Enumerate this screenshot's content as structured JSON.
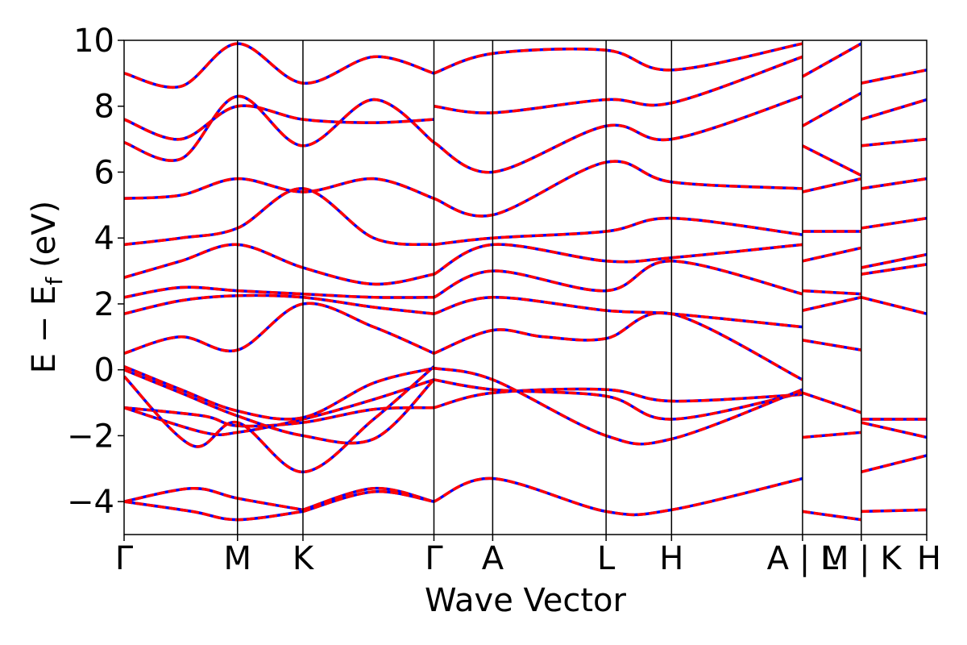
{
  "chart_data": {
    "type": "line",
    "title": "",
    "xlabel": "Wave Vector",
    "ylabel": "E − E",
    "ylabel_subscript": "f",
    "ylabel_unit": "(eV)",
    "ylim": [
      -5,
      10
    ],
    "yticks": [
      10,
      8,
      6,
      4,
      2,
      0,
      -2,
      -4
    ],
    "ytick_labels": [
      "10",
      "8",
      "6",
      "4",
      "2",
      "0",
      "−2",
      "−4"
    ],
    "kpath_x": [
      0,
      1.0,
      1.577,
      2.732,
      3.25,
      4.25,
      4.827,
      5.982,
      6.5,
      7.077
    ],
    "kpoint_labels": [
      "Γ",
      "M",
      "K",
      "Γ",
      "A",
      "L",
      "H",
      "A | L",
      "M | K",
      "H"
    ],
    "xlim": [
      0,
      7.077
    ],
    "grid": false,
    "legend": "none",
    "series_styles": [
      {
        "color": "#0000ff",
        "style": "solid"
      },
      {
        "color": "#ff0000",
        "style": "dashed"
      }
    ],
    "bands": [
      {
        "x": [
          0,
          0.6,
          1.0,
          1.577
        ],
        "y": [
          -4.0,
          -3.6,
          -3.9,
          -4.25
        ]
      },
      {
        "x": [
          0,
          0.6,
          1.0,
          1.577
        ],
        "y": [
          -4.0,
          -4.3,
          -4.55,
          -4.3
        ]
      },
      {
        "x": [
          1.577,
          2.2,
          2.732
        ],
        "y": [
          -4.25,
          -3.6,
          -4.0
        ]
      },
      {
        "x": [
          1.577,
          2.2,
          2.732
        ],
        "y": [
          -4.3,
          -3.7,
          -4.0
        ]
      },
      {
        "x": [
          0,
          0.7,
          1.0,
          1.577,
          2.2,
          2.732
        ],
        "y": [
          -1.15,
          -1.4,
          -1.7,
          -1.6,
          -1.2,
          -1.15
        ]
      },
      {
        "x": [
          0,
          0.7,
          1.0,
          1.577,
          2.2,
          2.732
        ],
        "y": [
          -1.15,
          -1.9,
          -1.9,
          -1.5,
          -0.9,
          -0.3
        ]
      },
      {
        "x": [
          0,
          0.6,
          1.0,
          1.577,
          2.2,
          2.732
        ],
        "y": [
          -0.2,
          -2.3,
          -1.6,
          -3.1,
          -1.5,
          0.1
        ]
      },
      {
        "x": [
          0,
          0.5,
          1.0,
          1.577,
          2.2,
          2.732
        ],
        "y": [
          0.1,
          -0.6,
          -1.25,
          -1.45,
          -0.4,
          0.05
        ]
      },
      {
        "x": [
          0,
          0.5,
          1.0,
          1.577,
          2.2,
          2.732
        ],
        "y": [
          0.0,
          -0.7,
          -1.4,
          -2.0,
          -2.1,
          -0.3
        ]
      },
      {
        "x": [
          0,
          0.5,
          1.0,
          1.577,
          2.2,
          2.732
        ],
        "y": [
          0.5,
          1.0,
          0.6,
          2.0,
          1.3,
          0.5
        ]
      },
      {
        "x": [
          0,
          0.5,
          1.0,
          1.577,
          2.2,
          2.732
        ],
        "y": [
          1.7,
          2.1,
          2.25,
          2.2,
          1.9,
          1.7
        ]
      },
      {
        "x": [
          0,
          0.5,
          1.0,
          1.577,
          2.2,
          2.732
        ],
        "y": [
          2.2,
          2.5,
          2.4,
          2.3,
          2.2,
          2.2
        ]
      },
      {
        "x": [
          0,
          0.5,
          1.0,
          1.577,
          2.2,
          2.732
        ],
        "y": [
          2.8,
          3.3,
          3.8,
          3.1,
          2.6,
          2.9
        ]
      },
      {
        "x": [
          0,
          0.5,
          1.0,
          1.577,
          2.2,
          2.732
        ],
        "y": [
          3.8,
          4.0,
          4.3,
          5.5,
          4.0,
          3.8
        ]
      },
      {
        "x": [
          0,
          0.5,
          1.0,
          1.577,
          2.2,
          2.732
        ],
        "y": [
          5.2,
          5.3,
          5.8,
          5.4,
          5.8,
          5.2
        ]
      },
      {
        "x": [
          0,
          0.5,
          1.0,
          1.577,
          2.2,
          2.732
        ],
        "y": [
          6.9,
          6.4,
          8.3,
          6.8,
          8.2,
          6.9
        ]
      },
      {
        "x": [
          0,
          0.5,
          1.0,
          1.577,
          2.2,
          2.732
        ],
        "y": [
          7.6,
          7.0,
          8.0,
          7.6,
          7.5,
          7.6
        ]
      },
      {
        "x": [
          0,
          0.5,
          1.0,
          1.577,
          2.2,
          2.732
        ],
        "y": [
          9.0,
          8.6,
          9.9,
          8.7,
          9.5,
          9.0
        ]
      },
      {
        "x": [
          2.732,
          3.25,
          4.25,
          4.827,
          5.982
        ],
        "y": [
          -1.15,
          -0.7,
          -0.6,
          -0.95,
          -0.75
        ]
      },
      {
        "x": [
          2.732,
          3.25,
          4.25,
          4.827,
          5.982
        ],
        "y": [
          -0.3,
          -0.6,
          -0.8,
          -1.5,
          -0.7
        ]
      },
      {
        "x": [
          2.732,
          3.25,
          4.25,
          4.827,
          5.982
        ],
        "y": [
          0.05,
          -0.3,
          -2.0,
          -2.1,
          -0.6
        ]
      },
      {
        "x": [
          2.732,
          3.25,
          3.7,
          4.25,
          4.827,
          5.982
        ],
        "y": [
          0.5,
          1.2,
          1.0,
          0.95,
          1.7,
          -0.3
        ]
      },
      {
        "x": [
          2.732,
          3.25,
          4.25,
          4.827,
          5.982
        ],
        "y": [
          1.7,
          2.2,
          1.8,
          1.7,
          1.3
        ]
      },
      {
        "x": [
          2.732,
          3.25,
          4.25,
          4.827,
          5.982
        ],
        "y": [
          2.2,
          3.0,
          2.4,
          3.3,
          2.3
        ]
      },
      {
        "x": [
          2.732,
          3.25,
          4.25,
          4.827,
          5.982
        ],
        "y": [
          2.9,
          3.8,
          3.3,
          3.4,
          3.8
        ]
      },
      {
        "x": [
          2.732,
          3.25,
          4.25,
          4.827,
          5.982
        ],
        "y": [
          3.8,
          4.0,
          4.2,
          4.6,
          4.1
        ]
      },
      {
        "x": [
          2.732,
          3.25,
          4.25,
          4.827,
          5.982
        ],
        "y": [
          5.2,
          4.7,
          6.3,
          5.7,
          5.5
        ]
      },
      {
        "x": [
          2.732,
          3.25,
          4.25,
          4.827,
          5.982
        ],
        "y": [
          6.9,
          6.0,
          7.4,
          7.0,
          8.3
        ]
      },
      {
        "x": [
          2.732,
          3.25,
          4.25,
          4.827,
          5.982
        ],
        "y": [
          8.0,
          7.8,
          8.2,
          8.1,
          9.5
        ]
      },
      {
        "x": [
          2.732,
          3.25,
          4.25,
          4.827,
          5.982
        ],
        "y": [
          9.0,
          9.6,
          9.7,
          9.1,
          9.9
        ]
      },
      {
        "x": [
          2.732,
          3.25,
          4.25,
          4.827,
          5.982
        ],
        "y": [
          -4.0,
          -3.3,
          -4.3,
          -4.25,
          -3.3
        ]
      },
      {
        "x": [
          5.982,
          6.5
        ],
        "y": [
          -4.3,
          -4.55
        ]
      },
      {
        "x": [
          5.982,
          6.5
        ],
        "y": [
          -2.05,
          -1.9
        ]
      },
      {
        "x": [
          5.982,
          6.5
        ],
        "y": [
          -0.7,
          -1.3
        ]
      },
      {
        "x": [
          5.982,
          6.5
        ],
        "y": [
          0.9,
          0.6
        ]
      },
      {
        "x": [
          5.982,
          6.5
        ],
        "y": [
          1.8,
          2.2
        ]
      },
      {
        "x": [
          5.982,
          6.5
        ],
        "y": [
          2.4,
          2.3
        ]
      },
      {
        "x": [
          5.982,
          6.5
        ],
        "y": [
          3.3,
          3.7
        ]
      },
      {
        "x": [
          5.982,
          6.5
        ],
        "y": [
          4.2,
          4.2
        ]
      },
      {
        "x": [
          5.982,
          6.5
        ],
        "y": [
          5.4,
          5.8
        ]
      },
      {
        "x": [
          5.982,
          6.5
        ],
        "y": [
          6.8,
          5.9
        ]
      },
      {
        "x": [
          5.982,
          6.5
        ],
        "y": [
          7.4,
          8.4
        ]
      },
      {
        "x": [
          5.982,
          6.5
        ],
        "y": [
          8.9,
          9.9
        ]
      },
      {
        "x": [
          6.5,
          7.077
        ],
        "y": [
          -4.3,
          -4.25
        ]
      },
      {
        "x": [
          6.5,
          7.077
        ],
        "y": [
          -3.1,
          -2.6
        ]
      },
      {
        "x": [
          6.5,
          7.077
        ],
        "y": [
          -1.5,
          -1.5
        ]
      },
      {
        "x": [
          6.5,
          7.077
        ],
        "y": [
          -1.6,
          -2.05
        ]
      },
      {
        "x": [
          6.5,
          7.077
        ],
        "y": [
          2.2,
          1.7
        ]
      },
      {
        "x": [
          6.5,
          7.077
        ],
        "y": [
          2.9,
          3.2
        ]
      },
      {
        "x": [
          6.5,
          7.077
        ],
        "y": [
          3.1,
          3.5
        ]
      },
      {
        "x": [
          6.5,
          7.077
        ],
        "y": [
          4.3,
          4.6
        ]
      },
      {
        "x": [
          6.5,
          7.077
        ],
        "y": [
          5.5,
          5.8
        ]
      },
      {
        "x": [
          6.5,
          7.077
        ],
        "y": [
          6.8,
          7.0
        ]
      },
      {
        "x": [
          6.5,
          7.077
        ],
        "y": [
          7.6,
          8.2
        ]
      },
      {
        "x": [
          6.5,
          7.077
        ],
        "y": [
          8.7,
          9.1
        ]
      }
    ]
  }
}
